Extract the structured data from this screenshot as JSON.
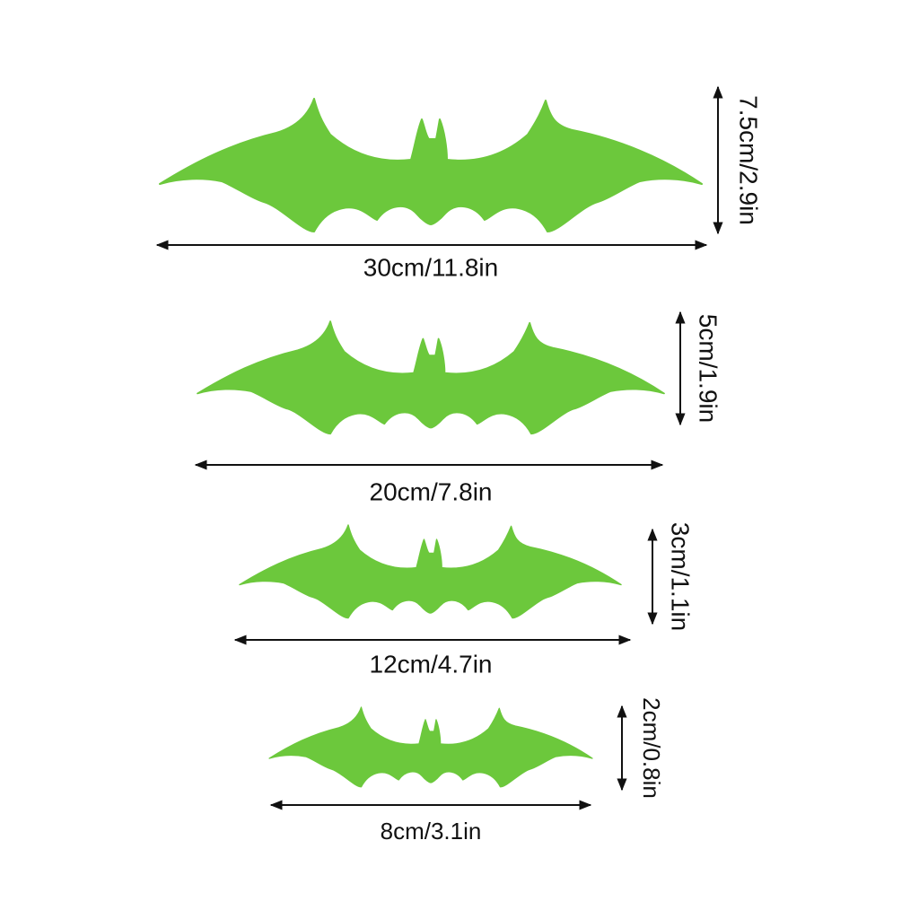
{
  "figures": [
    {
      "width_label": "30cm/11.8in",
      "height_label": "7.5cm/2.9in"
    },
    {
      "width_label": "20cm/7.8in",
      "height_label": "5cm/1.9in"
    },
    {
      "width_label": "12cm/4.7in",
      "height_label": "3cm/1.1in"
    },
    {
      "width_label": "8cm/3.1in",
      "height_label": "2cm/0.8in"
    }
  ]
}
